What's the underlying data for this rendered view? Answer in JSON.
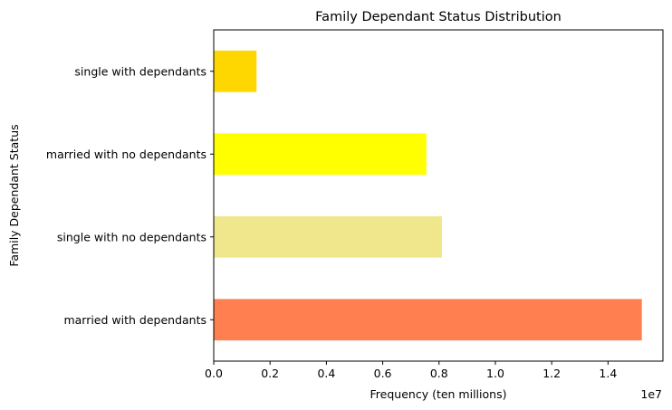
{
  "chart_data": {
    "type": "bar",
    "orientation": "horizontal",
    "title": "Family Dependant Status Distribution",
    "xlabel": "Frequency (ten millions)",
    "ylabel": "Family Dependant Status",
    "x_offset_label": "1e7",
    "x_tick_values": [
      0,
      2000000,
      4000000,
      6000000,
      8000000,
      10000000,
      12000000,
      14000000
    ],
    "x_tick_labels": [
      "0.0",
      "0.2",
      "0.4",
      "0.6",
      "0.8",
      "1.0",
      "1.2",
      "1.4"
    ],
    "xlim": [
      0,
      15950000
    ],
    "categories": [
      "married with dependants",
      "single with no dependants",
      "married with no dependants",
      "single with dependants"
    ],
    "values": [
      15200000,
      8100000,
      7550000,
      1520000
    ],
    "colors": [
      "#FF7F50",
      "#F0E68C",
      "#FFFF00",
      "#FFD700"
    ],
    "grid": false,
    "legend": false
  }
}
